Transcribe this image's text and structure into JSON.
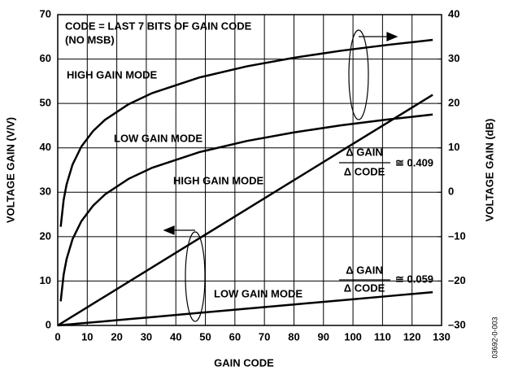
{
  "chart_data": {
    "type": "line",
    "x_label": "GAIN CODE",
    "y_label": "VOLTAGE GAIN (V/V)",
    "y2_label": "VOLTAGE GAIN (dB)",
    "x": [
      0,
      1,
      2,
      3,
      5,
      8,
      12,
      16,
      24,
      32,
      48,
      64,
      80,
      96,
      112,
      127
    ],
    "series": [
      {
        "name": "HIGH GAIN MODE (V/V)",
        "color": "#000000",
        "values": [
          0,
          0.409,
          0.818,
          1.227,
          2.045,
          3.272,
          4.908,
          6.544,
          9.816,
          13.088,
          19.632,
          26.176,
          32.72,
          39.264,
          45.808,
          51.943
        ]
      },
      {
        "name": "LOW GAIN MODE (V/V)",
        "color": "#000000",
        "values": [
          0,
          0.059,
          0.118,
          0.177,
          0.295,
          0.472,
          0.708,
          0.944,
          1.416,
          1.888,
          2.832,
          3.776,
          4.72,
          5.664,
          6.608,
          7.493
        ]
      },
      {
        "name": "HIGH GAIN MODE (dB)",
        "color": "#000000",
        "axis": "y2",
        "values": [
          null,
          -7.77,
          -1.74,
          1.77,
          6.21,
          10.29,
          13.81,
          16.31,
          19.83,
          22.33,
          25.85,
          28.35,
          30.29,
          31.88,
          33.21,
          34.31
        ]
      },
      {
        "name": "LOW GAIN MODE (dB)",
        "color": "#000000",
        "axis": "y2",
        "values": [
          null,
          -24.58,
          -18.56,
          -15.04,
          -10.6,
          -6.52,
          -3.0,
          -0.5,
          3.02,
          5.52,
          9.04,
          11.54,
          13.48,
          15.07,
          16.4,
          17.5
        ]
      }
    ],
    "xlim": [
      0,
      130
    ],
    "xticks": [
      0,
      10,
      20,
      30,
      40,
      50,
      60,
      70,
      80,
      90,
      100,
      110,
      120,
      130
    ],
    "ylim": [
      0,
      70
    ],
    "yticks": [
      0,
      10,
      20,
      30,
      40,
      50,
      60,
      70
    ],
    "y2lim": [
      -30,
      40
    ],
    "y2ticks": [
      {
        "value": -30,
        "label": "–30"
      },
      {
        "value": -20,
        "label": "–20"
      },
      {
        "value": -10,
        "label": "–10"
      },
      0,
      10,
      20,
      30,
      40
    ],
    "grid": true,
    "annotations": [
      "CODE = LAST 7 BITS OF GAIN CODE",
      "(NO MSB)",
      "HIGH GAIN MODE",
      "LOW GAIN MODE",
      "HIGH GAIN MODE",
      "LOW GAIN MODE",
      "Δ GAIN",
      "Δ CODE",
      "≅ 0.409",
      "Δ GAIN",
      "Δ CODE",
      "≅ 0.059",
      "03692-0-003"
    ]
  }
}
